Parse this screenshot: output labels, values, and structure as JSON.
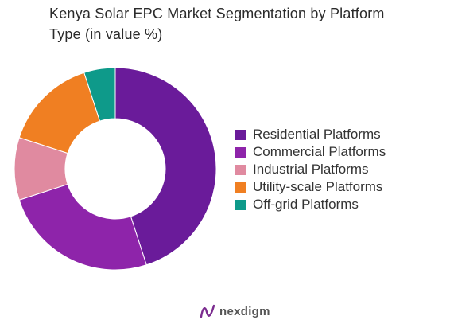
{
  "title_lines": [
    "Kenya Solar EPC Market Segmentation by Platform",
    "Type (in value %)"
  ],
  "brand": {
    "name": "nexdigm",
    "icon": "nexdigm-logo-icon"
  },
  "chart_data": {
    "type": "pie",
    "variant": "donut",
    "title": "Kenya Solar EPC Market Segmentation by Platform Type (in value %)",
    "legend_position": "right",
    "categories": [
      "Residential Platforms",
      "Commercial Platforms",
      "Industrial Platforms",
      "Utility-scale Platforms",
      "Off-grid Platforms"
    ],
    "values": [
      45,
      25,
      10,
      15,
      5
    ],
    "colors": [
      "#6a1b9a",
      "#8e24aa",
      "#e08aa0",
      "#f07f22",
      "#0e9a8a"
    ],
    "start_angle_deg": 0,
    "direction": "clockwise"
  }
}
